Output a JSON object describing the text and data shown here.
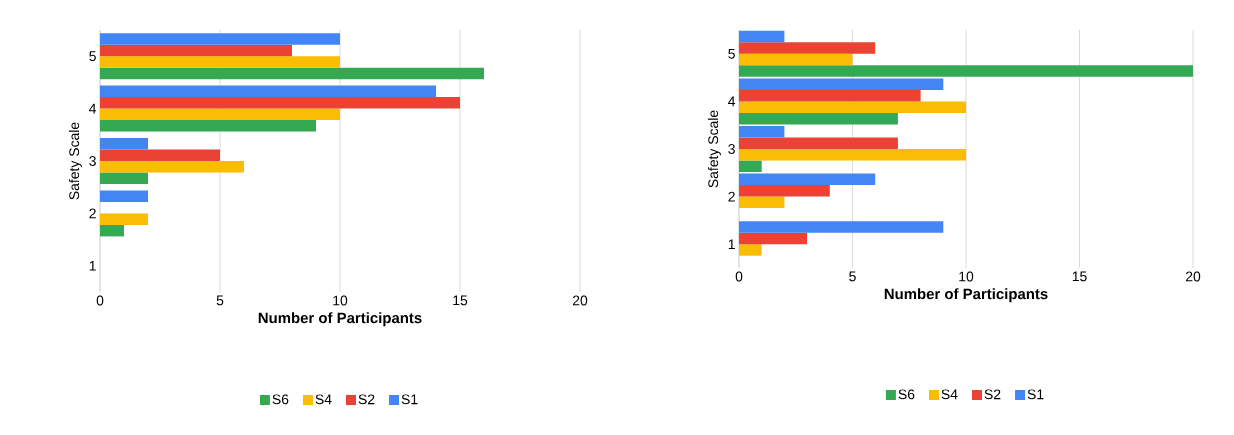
{
  "chart_data": [
    {
      "type": "bar",
      "orientation": "horizontal",
      "categories": [
        "5",
        "4",
        "3",
        "2",
        "1"
      ],
      "series": [
        {
          "name": "S6",
          "color": "#34a853",
          "values": [
            16,
            9,
            2,
            1,
            0
          ]
        },
        {
          "name": "S4",
          "color": "#fbbc04",
          "values": [
            10,
            10,
            6,
            2,
            0
          ]
        },
        {
          "name": "S2",
          "color": "#ea4335",
          "values": [
            8,
            15,
            5,
            0,
            0
          ]
        },
        {
          "name": "S1",
          "color": "#4285f4",
          "values": [
            10,
            14,
            2,
            2,
            0
          ]
        }
      ],
      "xlim": [
        0,
        20
      ],
      "xticks": [
        0,
        5,
        10,
        15,
        20
      ],
      "xlabel": "Number of Participants",
      "ylabel": "Safety Scale",
      "grid": "x",
      "legend": "bottom"
    },
    {
      "type": "bar",
      "orientation": "horizontal",
      "categories": [
        "5",
        "4",
        "3",
        "2",
        "1"
      ],
      "series": [
        {
          "name": "S6",
          "color": "#34a853",
          "values": [
            20,
            7,
            1,
            0,
            0
          ]
        },
        {
          "name": "S4",
          "color": "#fbbc04",
          "values": [
            5,
            10,
            10,
            2,
            1
          ]
        },
        {
          "name": "S2",
          "color": "#ea4335",
          "values": [
            6,
            8,
            7,
            4,
            3
          ]
        },
        {
          "name": "S1",
          "color": "#4285f4",
          "values": [
            2,
            9,
            2,
            6,
            9
          ]
        }
      ],
      "xlim": [
        0,
        20
      ],
      "xticks": [
        0,
        5,
        10,
        15,
        20
      ],
      "xlabel": "Number of Participants",
      "ylabel": "Safety Scale",
      "grid": "x",
      "legend": "bottom"
    }
  ]
}
